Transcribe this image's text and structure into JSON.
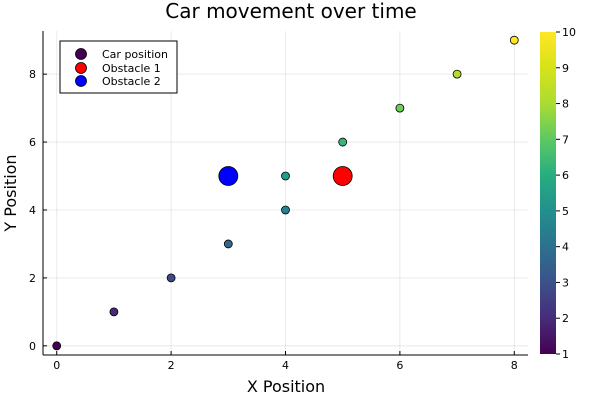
{
  "chart_data": {
    "type": "scatter",
    "title": "Car movement over time",
    "xlabel": "X Position",
    "ylabel": "Y Position",
    "xlim": [
      -0.24,
      8.24
    ],
    "ylim": [
      -0.27,
      9.27
    ],
    "x_ticks": [
      0,
      2,
      4,
      6,
      8
    ],
    "y_ticks": [
      0,
      2,
      4,
      6,
      8
    ],
    "grid": true,
    "legend_position": "top-left",
    "series": [
      {
        "name": "Car position",
        "color_by": "time",
        "legend_color": "#440154",
        "points": [
          {
            "x": 0,
            "y": 0,
            "t": 1
          },
          {
            "x": 1,
            "y": 1,
            "t": 2
          },
          {
            "x": 2,
            "y": 2,
            "t": 3
          },
          {
            "x": 3,
            "y": 3,
            "t": 4
          },
          {
            "x": 4,
            "y": 4,
            "t": 5
          },
          {
            "x": 4,
            "y": 5,
            "t": 6
          },
          {
            "x": 5,
            "y": 6,
            "t": 7
          },
          {
            "x": 6,
            "y": 7,
            "t": 8
          },
          {
            "x": 7,
            "y": 8,
            "t": 9
          },
          {
            "x": 8,
            "y": 9,
            "t": 10
          }
        ]
      },
      {
        "name": "Obstacle 1",
        "color": "#ff0000",
        "points": [
          {
            "x": 5,
            "y": 5
          }
        ]
      },
      {
        "name": "Obstacle 2",
        "color": "#0000ff",
        "points": [
          {
            "x": 3,
            "y": 5
          }
        ]
      }
    ],
    "colorbar": {
      "colormap": "viridis",
      "min": 1,
      "max": 10,
      "ticks": [
        1,
        2,
        3,
        4,
        5,
        6,
        7,
        8,
        9,
        10
      ]
    }
  }
}
